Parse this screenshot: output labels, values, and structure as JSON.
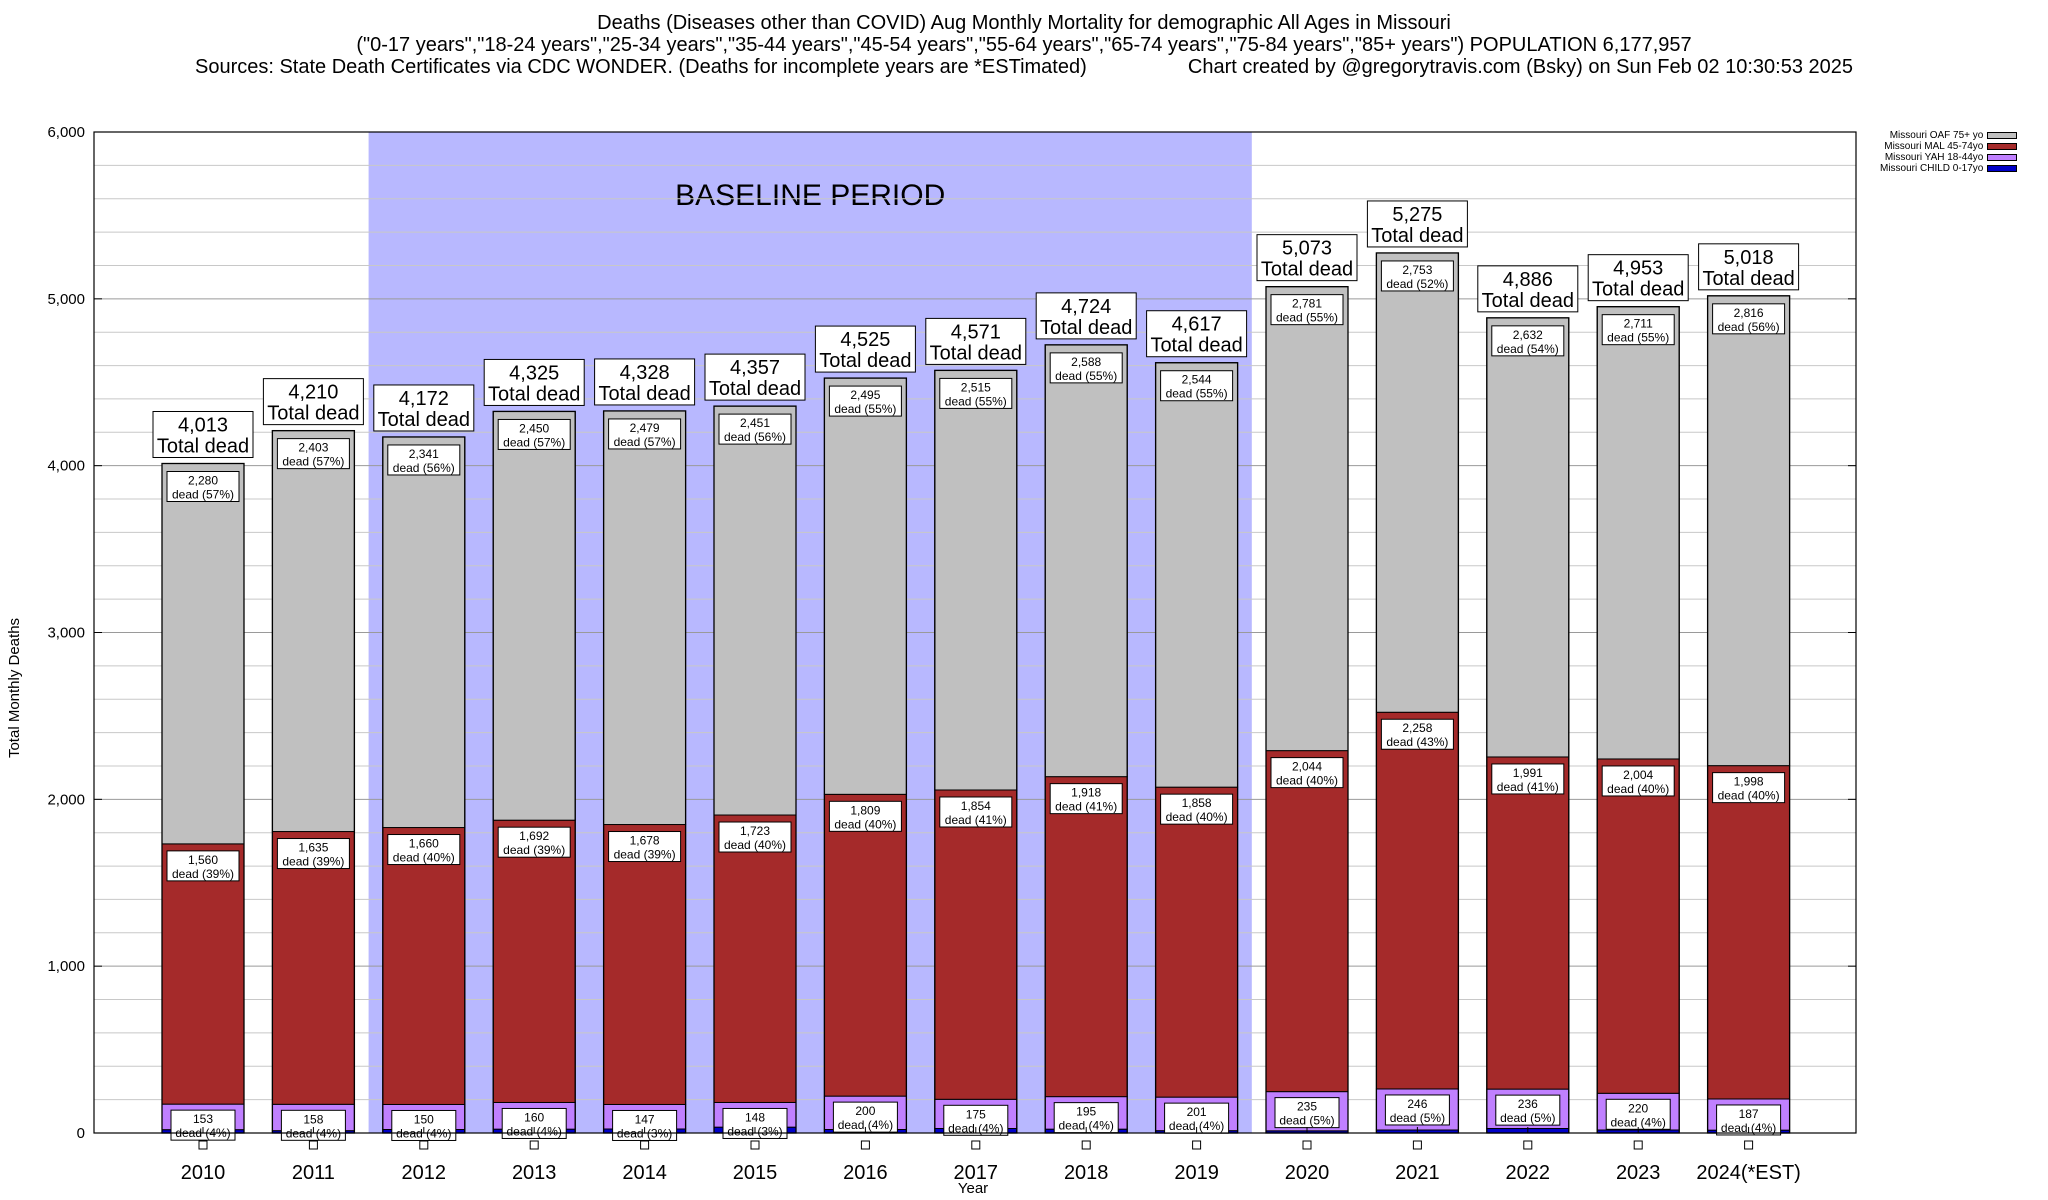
{
  "title": {
    "line1": "Deaths (Diseases other than COVID) Aug Monthly Mortality for demographic All Ages in Missouri",
    "line2": "(\"0-17 years\",\"18-24 years\",\"25-34 years\",\"35-44 years\",\"45-54 years\",\"55-64 years\",\"65-74 years\",\"75-84 years\",\"85+ years\") POPULATION 6,177,957",
    "line3_left": "Sources: State Death Certificates via CDC WONDER. (Deaths for incomplete years are *ESTimated)",
    "line3_right": "Chart created by @gregorytravis.com (Bsky) on Sun Feb 02 10:30:53 2025"
  },
  "legend": [
    {
      "label": "Missouri OAF 75+ yo",
      "color": "#c0c0c0"
    },
    {
      "label": "Missouri MAL 45-74yo",
      "color": "#a52a2a"
    },
    {
      "label": "Missouri YAH 18-44yo",
      "color": "#c080ff"
    },
    {
      "label": "Missouri CHILD 0-17yo",
      "color": "#0000c8"
    }
  ],
  "chart_data": {
    "type": "bar",
    "stacked": true,
    "xlabel": "Year",
    "ylabel": "Total Monthly Deaths",
    "ylim": [
      0,
      6000
    ],
    "yticks": [
      "0",
      "1,000",
      "2,000",
      "3,000",
      "4,000",
      "5,000",
      "6,000"
    ],
    "grid": true,
    "legend_position": "top-right",
    "baseline_label": "BASELINE PERIOD",
    "baseline_range": [
      "2012",
      "2019"
    ],
    "total_suffix": "Total dead",
    "categories": [
      "2010",
      "2011",
      "2012",
      "2013",
      "2014",
      "2015",
      "2016",
      "2017",
      "2018",
      "2019",
      "2020",
      "2021",
      "2022",
      "2023",
      "2024(*EST)"
    ],
    "totals": [
      4013,
      4210,
      4172,
      4325,
      4328,
      4357,
      4525,
      4571,
      4724,
      4617,
      5073,
      5275,
      4886,
      4953,
      5018
    ],
    "total_labels": [
      "4,013",
      "4,210",
      "4,172",
      "4,325",
      "4,328",
      "4,357",
      "4,525",
      "4,571",
      "4,724",
      "4,617",
      "5,073",
      "5,275",
      "4,886",
      "4,953",
      "5,018"
    ],
    "series": [
      {
        "name": "Missouri CHILD 0-17yo",
        "color": "#0000c8",
        "values": [
          20,
          14,
          21,
          23,
          24,
          35,
          21,
          27,
          23,
          14,
          13,
          18,
          27,
          18,
          17
        ],
        "labels": []
      },
      {
        "name": "Missouri YAH 18-44yo",
        "color": "#c080ff",
        "values": [
          153,
          158,
          150,
          160,
          147,
          148,
          200,
          175,
          195,
          201,
          235,
          246,
          236,
          220,
          187
        ],
        "labels": [
          "153",
          "158",
          "150",
          "160",
          "147",
          "148",
          "200",
          "175",
          "195",
          "201",
          "235",
          "246",
          "236",
          "220",
          "187"
        ],
        "pcts": [
          "dead (4%)",
          "dead (4%)",
          "dead (4%)",
          "dead (4%)",
          "dead (3%)",
          "dead (3%)",
          "dead (4%)",
          "dead (4%)",
          "dead (4%)",
          "dead (4%)",
          "dead (5%)",
          "dead (5%)",
          "dead (5%)",
          "dead (4%)",
          "dead (4%)"
        ]
      },
      {
        "name": "Missouri MAL 45-74yo",
        "color": "#a52a2a",
        "values": [
          1560,
          1635,
          1660,
          1692,
          1678,
          1723,
          1809,
          1854,
          1918,
          1858,
          2044,
          2258,
          1991,
          2004,
          1998
        ],
        "labels": [
          "1,560",
          "1,635",
          "1,660",
          "1,692",
          "1,678",
          "1,723",
          "1,809",
          "1,854",
          "1,918",
          "1,858",
          "2,044",
          "2,258",
          "1,991",
          "2,004",
          "1,998"
        ],
        "pcts": [
          "dead (39%)",
          "dead (39%)",
          "dead (40%)",
          "dead (39%)",
          "dead (39%)",
          "dead (40%)",
          "dead (40%)",
          "dead (41%)",
          "dead (41%)",
          "dead (40%)",
          "dead (40%)",
          "dead (43%)",
          "dead (41%)",
          "dead (40%)",
          "dead (40%)"
        ]
      },
      {
        "name": "Missouri OAF 75+ yo",
        "color": "#c0c0c0",
        "values": [
          2280,
          2403,
          2341,
          2450,
          2479,
          2451,
          2495,
          2515,
          2588,
          2544,
          2781,
          2753,
          2632,
          2711,
          2816
        ],
        "labels": [
          "2,280",
          "2,403",
          "2,341",
          "2,450",
          "2,479",
          "2,451",
          "2,495",
          "2,515",
          "2,588",
          "2,544",
          "2,781",
          "2,753",
          "2,632",
          "2,711",
          "2,816"
        ],
        "pcts": [
          "dead (57%)",
          "dead (57%)",
          "dead (56%)",
          "dead (57%)",
          "dead (57%)",
          "dead (56%)",
          "dead (55%)",
          "dead (55%)",
          "dead (55%)",
          "dead (55%)",
          "dead (55%)",
          "dead (52%)",
          "dead (54%)",
          "dead (55%)",
          "dead (56%)"
        ]
      }
    ]
  }
}
